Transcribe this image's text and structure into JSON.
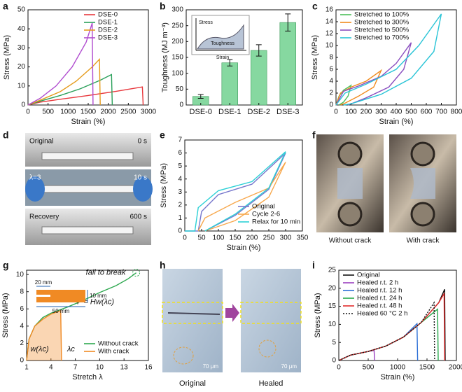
{
  "panels": [
    "a",
    "b",
    "c",
    "d",
    "e",
    "f",
    "g",
    "h",
    "i"
  ],
  "chart_data": [
    {
      "type": "line",
      "xlabel": "Strain (%)",
      "ylabel": "Stress (MPa)",
      "xlim": [
        0,
        3000
      ],
      "ylim": [
        0,
        50
      ],
      "xticks": [
        0,
        500,
        1000,
        1500,
        2000,
        2500,
        3000
      ],
      "yticks": [
        0,
        10,
        20,
        30,
        40,
        50
      ],
      "legend": "upper right",
      "series": [
        {
          "name": "DSE-0",
          "color": "#e8383d",
          "x": [
            0,
            300,
            800,
            1500,
            2200,
            2850,
            2870
          ],
          "values": [
            0,
            1.5,
            3,
            5,
            7.2,
            9.5,
            0
          ]
        },
        {
          "name": "DSE-1",
          "color": "#2aa05a",
          "x": [
            0,
            300,
            800,
            1300,
            1800,
            2080,
            2100
          ],
          "values": [
            0,
            2,
            5,
            8.5,
            13,
            16,
            0
          ]
        },
        {
          "name": "DSE-2",
          "color": "#e59b1c",
          "x": [
            0,
            300,
            800,
            1200,
            1600,
            1780,
            1800
          ],
          "values": [
            0,
            2.5,
            7,
            12.5,
            20,
            24,
            0
          ]
        },
        {
          "name": "DSE-3",
          "color": "#b04ccf",
          "x": [
            0,
            300,
            700,
            1100,
            1450,
            1600,
            1620
          ],
          "values": [
            0,
            3.5,
            10,
            20,
            33,
            43,
            0
          ]
        }
      ]
    },
    {
      "type": "bar",
      "ylabel": "Toughness (MJ m⁻³)",
      "categories": [
        "DSE-0",
        "DSE-1",
        "DSE-2",
        "DSE-3"
      ],
      "values": [
        27,
        133,
        172,
        260
      ],
      "errors": [
        6,
        10,
        18,
        27
      ],
      "color": "#86d8a0",
      "ylim": [
        0,
        300
      ],
      "yticks": [
        0,
        50,
        100,
        150,
        200,
        250,
        300
      ],
      "inset": [
        "Stress",
        "Toughness",
        "Strain"
      ]
    },
    {
      "type": "line",
      "xlabel": "Strain (%)",
      "ylabel": "Stress (MPa)",
      "xlim": [
        0,
        800
      ],
      "ylim": [
        0,
        16
      ],
      "xticks": [
        0,
        100,
        200,
        300,
        400,
        500,
        600,
        700,
        800
      ],
      "yticks": [
        0,
        2,
        4,
        6,
        8,
        10,
        12,
        14,
        16
      ],
      "legend": "upper left",
      "series": [
        {
          "name": "Stretched to 100%",
          "color": "#4cbf5a",
          "x": [
            0,
            20,
            50,
            100,
            80,
            50,
            20
          ],
          "values": [
            0,
            1.5,
            2.5,
            3.3,
            1.5,
            0.5,
            0
          ]
        },
        {
          "name": "Stretched to 300%",
          "color": "#f08a1c",
          "x": [
            0,
            30,
            100,
            200,
            300,
            250,
            150,
            60,
            30
          ],
          "values": [
            0,
            2,
            3,
            4,
            5.8,
            3,
            1.5,
            0.3,
            0
          ]
        },
        {
          "name": "Stretched to 500%",
          "color": "#8a4fbf",
          "x": [
            0,
            50,
            150,
            300,
            400,
            500,
            450,
            350,
            200,
            80
          ],
          "values": [
            0,
            2.3,
            3.2,
            4.8,
            7,
            10.5,
            6,
            3,
            1.2,
            0
          ]
        },
        {
          "name": "Stretched to 700%",
          "color": "#29c4d6",
          "x": [
            0,
            60,
            200,
            400,
            550,
            700,
            650,
            500,
            300,
            100,
            50
          ],
          "values": [
            0,
            2,
            3.5,
            6,
            10,
            15.3,
            9,
            4.5,
            1.8,
            0.2,
            0
          ]
        }
      ]
    },
    {
      "type": "line",
      "xlabel": "Strain (%)",
      "ylabel": "Stress (MPa)",
      "xlim": [
        0,
        350
      ],
      "ylim": [
        0,
        7
      ],
      "xticks": [
        0,
        50,
        100,
        150,
        200,
        250,
        300,
        350
      ],
      "yticks": [
        0,
        1,
        2,
        3,
        4,
        5,
        6,
        7
      ],
      "legend": "lower right",
      "series": [
        {
          "name": "Original",
          "color": "#7777cc",
          "x": [
            0,
            40,
            50,
            100,
            200,
            300,
            250,
            150,
            60
          ],
          "values": [
            0,
            0,
            1.5,
            2.8,
            3.6,
            6,
            3.2,
            1.2,
            0
          ]
        },
        {
          "name": "Cycle 2-6",
          "color": "#f7a84d",
          "x": [
            40,
            60,
            150,
            250,
            300,
            250,
            150,
            60
          ],
          "values": [
            0,
            1,
            2.2,
            3.3,
            5.3,
            2.6,
            0.8,
            0
          ]
        },
        {
          "name": "Relax for 10 min",
          "color": "#2cd0d6",
          "x": [
            0,
            30,
            40,
            100,
            200,
            300,
            250,
            150,
            60
          ],
          "values": [
            0,
            0,
            1.8,
            3.1,
            3.8,
            6.1,
            3.3,
            1.3,
            0
          ]
        }
      ]
    },
    {
      "type": "line",
      "xlabel": "Stretch λ",
      "ylabel": "Stress (MPa)",
      "xlim": [
        1,
        16
      ],
      "ylim": [
        0,
        10.5
      ],
      "xticks": [
        1,
        4,
        7,
        10,
        13,
        16
      ],
      "yticks": [
        0,
        2,
        4,
        6,
        8,
        10
      ],
      "legend": "lower right",
      "annotations": [
        "fail to break",
        "Γ = Hw(λc)",
        "w(λc)",
        "λc"
      ],
      "inset": [
        "20 mm",
        "10 mm",
        "50 mm"
      ],
      "series": [
        {
          "name": "Without crack",
          "color": "#2ea84f",
          "x": [
            1,
            1.3,
            2,
            3,
            4,
            6,
            8,
            10,
            12,
            13.5,
            14.5
          ],
          "values": [
            0,
            2.5,
            4,
            5,
            5.5,
            6.2,
            7,
            7.9,
            8.7,
            9.5,
            10.2
          ]
        },
        {
          "name": "With crack",
          "color": "#f08a24",
          "fill": true,
          "x": [
            1,
            1.3,
            2,
            3,
            4,
            5.2,
            5.3
          ],
          "values": [
            0,
            2.5,
            4,
            4.8,
            5.4,
            5.8,
            0
          ]
        }
      ]
    },
    {
      "type": "line",
      "xlabel": "Strain (%)",
      "ylabel": "Stress (MPa)",
      "xlim": [
        0,
        2000
      ],
      "ylim": [
        0,
        25
      ],
      "xticks": [
        0,
        500,
        1000,
        1500,
        2000
      ],
      "yticks": [
        0,
        5,
        10,
        15,
        20,
        25
      ],
      "legend": "upper left",
      "series": [
        {
          "name": "Original",
          "color": "#111111",
          "x": [
            0,
            200,
            500,
            800,
            1100,
            1400,
            1700,
            1800,
            1810
          ],
          "values": [
            0,
            1.5,
            2.5,
            4,
            6.5,
            10.5,
            16,
            19.7,
            0
          ]
        },
        {
          "name": "Healed r.t. 2 h",
          "color": "#9b3fbf",
          "x": [
            0,
            200,
            500,
            600,
            610
          ],
          "values": [
            0,
            1.5,
            2.5,
            2.8,
            0
          ]
        },
        {
          "name": "Healed r.t. 12 h",
          "color": "#2c6fd6",
          "x": [
            0,
            200,
            500,
            800,
            1100,
            1330,
            1340
          ],
          "values": [
            0,
            1.5,
            2.5,
            4,
            6.5,
            10.2,
            0
          ]
        },
        {
          "name": "Healed r.t. 24 h",
          "color": "#26a84a",
          "x": [
            0,
            200,
            500,
            800,
            1100,
            1400,
            1680,
            1690
          ],
          "values": [
            0,
            1.5,
            2.5,
            4,
            6.5,
            10.5,
            14.2,
            0
          ]
        },
        {
          "name": "Healed r.t. 48 h",
          "color": "#e22c2c",
          "x": [
            0,
            200,
            500,
            800,
            1100,
            1400,
            1700,
            1790,
            1800
          ],
          "values": [
            0,
            1.5,
            2.5,
            4,
            6.5,
            10.5,
            16,
            18.5,
            0
          ]
        },
        {
          "name": "Healed 60 °C 2 h",
          "color": "#111111",
          "dash": "dotted",
          "x": [
            0,
            200,
            500,
            800,
            1100,
            1400,
            1620,
            1630
          ],
          "values": [
            0,
            1.5,
            2.5,
            4,
            6.5,
            10.5,
            16,
            0
          ]
        }
      ]
    }
  ],
  "photos": {
    "d": [
      "Original",
      "0 s",
      "λ=3",
      "10 s",
      "Recovery",
      "600 s"
    ],
    "f": [
      "Without crack",
      "With crack"
    ],
    "h": [
      "Original",
      "Healed",
      "70 μm",
      "70 μm"
    ]
  }
}
